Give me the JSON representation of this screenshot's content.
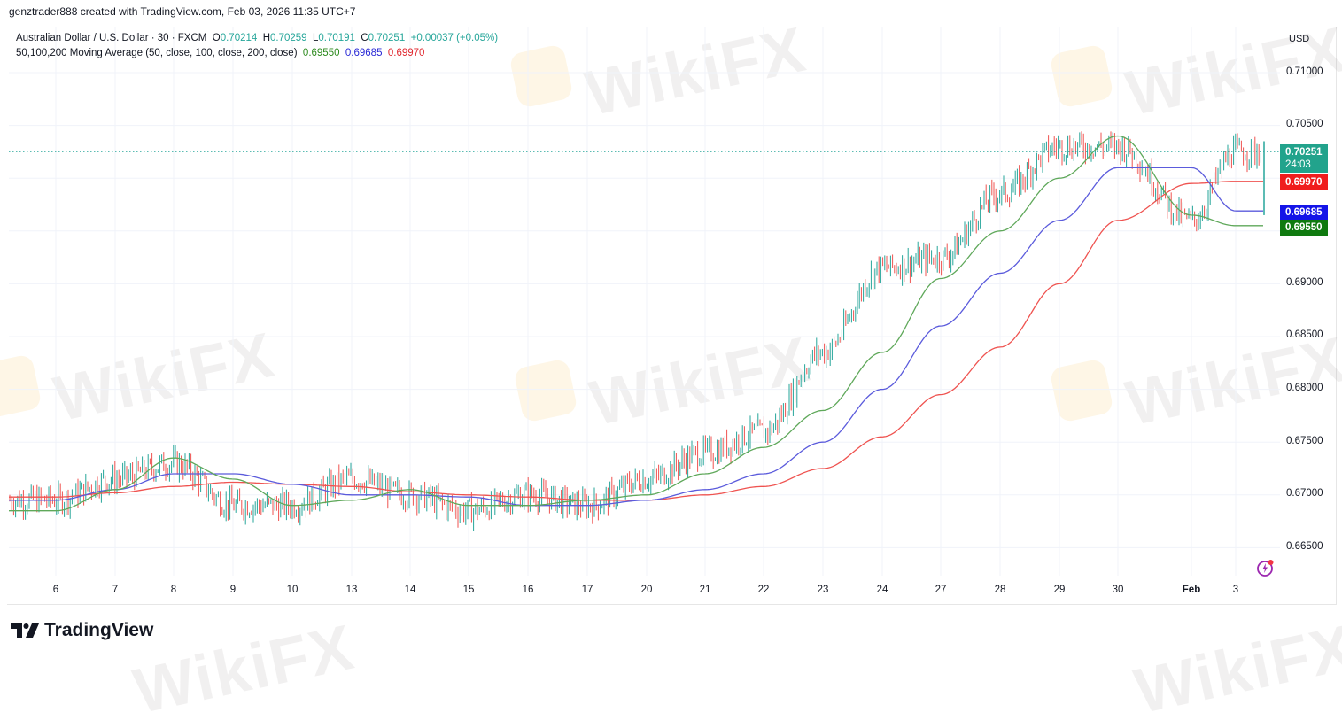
{
  "credit": "genztrader888 created with TradingView.com, Feb 03, 2026 11:35 UTC+7",
  "legend": {
    "symbol": "Australian Dollar / U.S. Dollar · 30 · FXCM",
    "o_label": "O",
    "o_value": "0.70214",
    "h_label": "H",
    "h_value": "0.70259",
    "l_label": "L",
    "l_value": "0.70191",
    "c_label": "C",
    "c_value": "0.70251",
    "change": "+0.00037 (+0.05%)",
    "ma_title": "50,100,200 Moving Average (50, close, 100, close, 200, close)",
    "ma50": "0.69550",
    "ma100": "0.69685",
    "ma200": "0.69970"
  },
  "price_axis": {
    "currency": "USD",
    "ticks": [
      "0.71000",
      "0.70500",
      "0.69000",
      "0.68500",
      "0.68000",
      "0.67500",
      "0.67000",
      "0.66500"
    ]
  },
  "badges": {
    "last_price": "0.70251",
    "countdown": "24:03",
    "ma200": "0.69970",
    "ma100": "0.69685",
    "ma50": "0.69550"
  },
  "time_axis": {
    "ticks": [
      "6",
      "7",
      "8",
      "9",
      "10",
      "13",
      "14",
      "15",
      "16",
      "17",
      "20",
      "21",
      "22",
      "23",
      "24",
      "27",
      "28",
      "29",
      "30",
      "Feb",
      "3"
    ]
  },
  "branding": {
    "logo_text": "TradingView",
    "watermark": "WikiFX"
  },
  "colors": {
    "up": "#26a69a",
    "down": "#ef5350",
    "ma50": "#2e8b1f",
    "ma100": "#2a2ad6",
    "ma200": "#e0282f",
    "last_badge": "#22a38c"
  },
  "chart_data": {
    "type": "line",
    "title": "Australian Dollar / U.S. Dollar · 30 · FXCM",
    "xlabel": "",
    "ylabel": "USD",
    "ylim": [
      0.6625,
      0.7125
    ],
    "grid": true,
    "legend_position": "top-left",
    "categories": [
      "6",
      "7",
      "8",
      "9",
      "10",
      "13",
      "14",
      "15",
      "16",
      "17",
      "20",
      "21",
      "22",
      "23",
      "24",
      "27",
      "28",
      "29",
      "30",
      "Feb",
      "3"
    ],
    "series": [
      {
        "name": "AUDUSD close (approx)",
        "values": [
          0.6695,
          0.6715,
          0.673,
          0.669,
          0.669,
          0.6715,
          0.67,
          0.6685,
          0.67,
          0.669,
          0.6715,
          0.674,
          0.676,
          0.6835,
          0.6915,
          0.6925,
          0.6985,
          0.703,
          0.703,
          0.696,
          0.7025
        ]
      },
      {
        "name": "MA 50",
        "values": [
          0.6685,
          0.6705,
          0.6735,
          0.6715,
          0.669,
          0.6695,
          0.6705,
          0.669,
          0.669,
          0.6695,
          0.67,
          0.672,
          0.6745,
          0.678,
          0.6835,
          0.6905,
          0.695,
          0.7,
          0.704,
          0.6965,
          0.6955
        ]
      },
      {
        "name": "MA 100",
        "values": [
          0.6695,
          0.6705,
          0.672,
          0.672,
          0.671,
          0.67,
          0.67,
          0.6698,
          0.669,
          0.669,
          0.6695,
          0.6705,
          0.672,
          0.675,
          0.68,
          0.686,
          0.691,
          0.696,
          0.701,
          0.701,
          0.6969
        ]
      },
      {
        "name": "MA 200",
        "values": [
          0.6698,
          0.6702,
          0.6708,
          0.6712,
          0.671,
          0.6708,
          0.6703,
          0.67,
          0.6698,
          0.6695,
          0.6695,
          0.67,
          0.6708,
          0.6725,
          0.6755,
          0.6795,
          0.684,
          0.69,
          0.696,
          0.6995,
          0.6997
        ]
      }
    ],
    "last_price": 0.70251,
    "ohlc_last": {
      "open": 0.70214,
      "high": 0.70259,
      "low": 0.70191,
      "close": 0.70251,
      "change": 0.00037,
      "change_pct": 0.05
    }
  }
}
